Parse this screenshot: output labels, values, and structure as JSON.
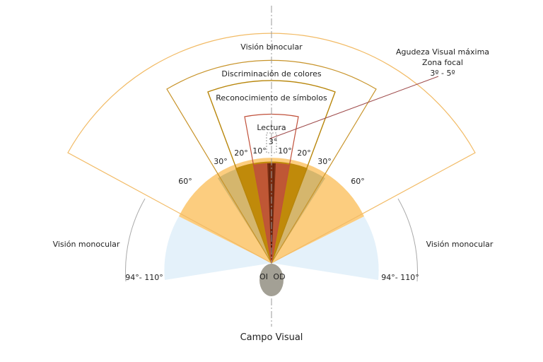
{
  "diagram": {
    "title": "Campo Visual",
    "zones": {
      "binocular": "Visión binocular",
      "colors": "Discriminación de colores",
      "symbols": "Reconocimiento de símbolos",
      "reading": "Lectura",
      "monocular_left": "Visión monocular",
      "monocular_right": "Visión monocular"
    },
    "focal": {
      "line1": "Agudeza Visual máxima",
      "line2": "Zona focal",
      "line3": "3º - 5º"
    },
    "angles": {
      "a3": "3°",
      "a10_left": "10°",
      "a10_right": "10°",
      "a20_left": "20°",
      "a20_right": "20°",
      "a30_left": "30°",
      "a30_right": "30°",
      "a60_left": "60°",
      "a60_right": "60°",
      "mono_left": "94°- 110°",
      "mono_right": "94°- 110°"
    },
    "eyes": {
      "left": "OI",
      "right": "OD"
    },
    "colors": {
      "monocular_fill": "#e4f1fa",
      "sixty_fill": "#fccd7f",
      "thirty_fill": "#d5b66d",
      "twenty_fill": "#c08a0a",
      "ten_fill": "#bf5735",
      "focal_fill": "#7a2e12",
      "binocular_stroke": "#f2bb66",
      "colors_stroke": "#c8942b",
      "symbols_stroke": "#b8860b",
      "reading_stroke": "#c0503a",
      "head_fill": "#a3a095",
      "leader_line": "#9e4a4a"
    }
  }
}
